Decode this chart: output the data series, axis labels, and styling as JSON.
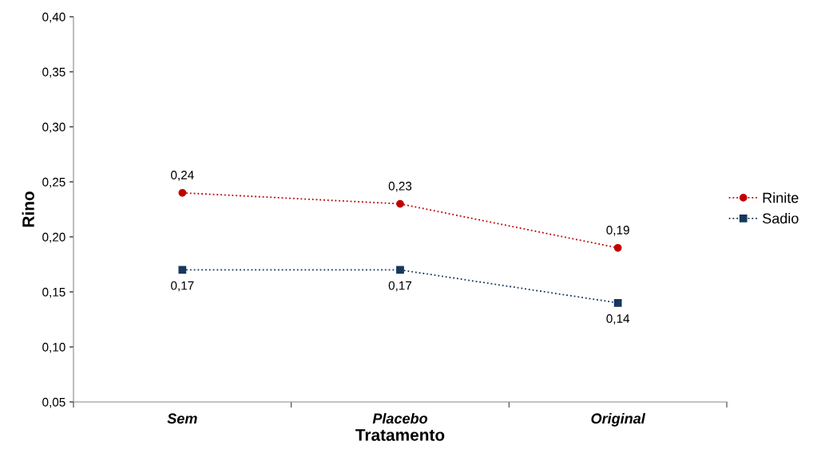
{
  "chart_data": {
    "type": "line",
    "xlabel": "Tratamento",
    "ylabel": "Rino",
    "categories": [
      "Sem",
      "Placebo",
      "Original"
    ],
    "series": [
      {
        "name": "Rinite",
        "color": "#c00000",
        "marker": "circle",
        "values": [
          0.24,
          0.23,
          0.19
        ],
        "value_labels": [
          "0,24",
          "0,23",
          "0,19"
        ]
      },
      {
        "name": "Sadio",
        "color": "#17375e",
        "marker": "square",
        "values": [
          0.17,
          0.17,
          0.14
        ],
        "value_labels": [
          "0,17",
          "0,17",
          "0,14"
        ]
      }
    ],
    "ylim": [
      0.05,
      0.4
    ],
    "yticks": [
      {
        "value": 0.05,
        "label": "0,05"
      },
      {
        "value": 0.1,
        "label": "0,10"
      },
      {
        "value": 0.15,
        "label": "0,15"
      },
      {
        "value": 0.2,
        "label": "0,20"
      },
      {
        "value": 0.25,
        "label": "0,25"
      },
      {
        "value": 0.3,
        "label": "0,30"
      },
      {
        "value": 0.35,
        "label": "0,35"
      },
      {
        "value": 0.4,
        "label": "0,40"
      }
    ],
    "line_style": "dotted",
    "grid": false,
    "legend": "right"
  }
}
